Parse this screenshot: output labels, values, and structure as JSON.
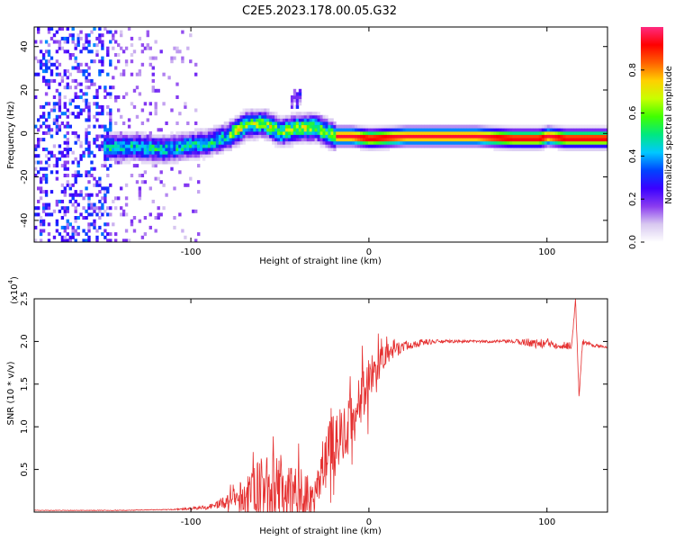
{
  "title": "C2E5.2023.178.00.05.G32",
  "chart_data": [
    {
      "type": "heatmap",
      "name": "spectrogram",
      "xlabel": "Height of straight line (km)",
      "ylabel": "Frequency (Hz)",
      "xlim": [
        -188,
        134
      ],
      "ylim": [
        -50,
        49
      ],
      "xticks": [
        -100,
        0,
        100
      ],
      "yticks": [
        -40,
        -20,
        0,
        20,
        40
      ],
      "grid": false,
      "colorbar": {
        "label": "Normalized spectral amplitude",
        "range": [
          0,
          1
        ],
        "ticks": [
          0.0,
          0.2,
          0.4,
          0.6,
          0.8
        ],
        "colors": [
          "#ffffff",
          "#d8c8f0",
          "#8a3cf0",
          "#3a00ff",
          "#0044ff",
          "#00c8ff",
          "#00e880",
          "#40ff00",
          "#c8ff00",
          "#ffd000",
          "#ff6000",
          "#ff0000",
          "#ff2a80"
        ]
      },
      "ridge": {
        "x": [
          -145,
          -130,
          -115,
          -100,
          -90,
          -80,
          -70,
          -60,
          -50,
          -40,
          -35,
          -30,
          -25,
          -20,
          -10,
          0,
          20,
          40,
          60,
          80,
          95,
          100,
          110,
          120,
          134
        ],
        "y": [
          -7,
          -7,
          -8,
          -6,
          -5,
          -2,
          3,
          4,
          0,
          2,
          2,
          2,
          0,
          -2,
          -2,
          -3,
          -2,
          -2,
          -2,
          -3,
          -3,
          -2,
          -3,
          -3,
          -3
        ]
      },
      "noise_region_x": [
        -188,
        -95
      ]
    },
    {
      "type": "line",
      "name": "snr",
      "xlabel": "Height of straight line (km)",
      "ylabel": "SNR (10 * v/v)",
      "yscale_label": "(x10",
      "yscale_exp": "4",
      "xlim": [
        -188,
        134
      ],
      "ylim": [
        0,
        2.5
      ],
      "xticks": [
        -100,
        0,
        100
      ],
      "yticks": [
        0.5,
        1.0,
        1.5,
        2.0,
        2.5
      ],
      "line_color": "#e53030",
      "trend": {
        "x": [
          -188,
          -140,
          -110,
          -100,
          -90,
          -80,
          -70,
          -60,
          -50,
          -40,
          -35,
          -30,
          -25,
          -20,
          -15,
          -10,
          -5,
          0,
          5,
          10,
          20,
          30,
          40,
          60,
          80,
          90,
          95,
          100,
          105,
          110,
          114,
          116,
          118,
          120,
          125,
          134
        ],
        "y": [
          0.02,
          0.02,
          0.03,
          0.04,
          0.06,
          0.12,
          0.2,
          0.3,
          0.28,
          0.25,
          0.2,
          0.25,
          0.6,
          0.85,
          0.95,
          1.1,
          1.3,
          1.55,
          1.7,
          1.85,
          1.95,
          1.99,
          2.0,
          2.0,
          2.0,
          1.99,
          1.97,
          1.98,
          1.97,
          1.95,
          1.96,
          2.5,
          1.35,
          2.0,
          1.96,
          1.93
        ]
      },
      "noise_amp": {
        "x": [
          -188,
          -110,
          -90,
          -80,
          -60,
          -45,
          -30,
          -20,
          -10,
          0,
          10,
          20,
          40,
          60,
          80,
          90,
          100,
          110,
          134
        ],
        "a": [
          0.003,
          0.005,
          0.03,
          0.08,
          0.35,
          0.35,
          0.2,
          0.4,
          0.35,
          0.3,
          0.12,
          0.06,
          0.02,
          0.015,
          0.02,
          0.05,
          0.06,
          0.05,
          0.01
        ]
      }
    }
  ]
}
